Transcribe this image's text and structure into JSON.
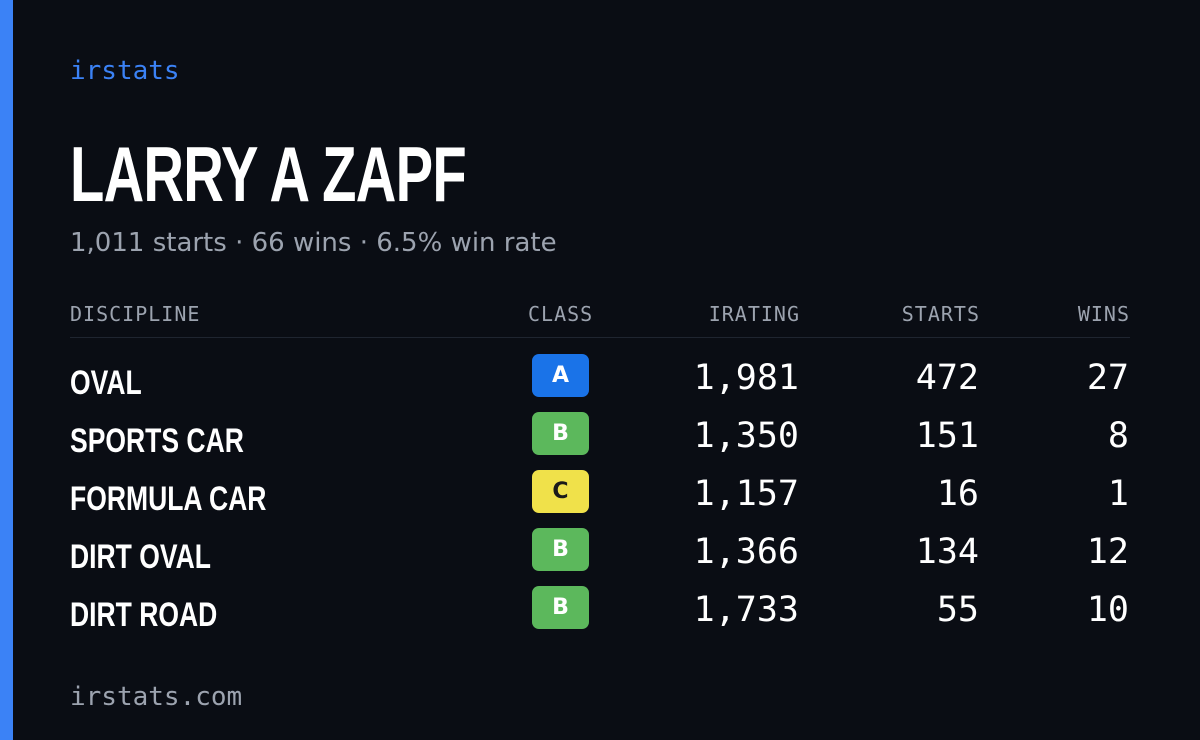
{
  "brand": "irstats",
  "driver": {
    "name": "LARRY A ZAPF",
    "summary": "1,011 starts · 66 wins · 6.5% win rate"
  },
  "table": {
    "headers": {
      "discipline": "DISCIPLINE",
      "class": "CLASS",
      "irating": "IRATING",
      "starts": "STARTS",
      "wins": "WINS"
    },
    "rows": [
      {
        "discipline": "OVAL",
        "class": "A",
        "irating": "1,981",
        "starts": "472",
        "wins": "27"
      },
      {
        "discipline": "SPORTS CAR",
        "class": "B",
        "irating": "1,350",
        "starts": "151",
        "wins": "8"
      },
      {
        "discipline": "FORMULA CAR",
        "class": "C",
        "irating": "1,157",
        "starts": "16",
        "wins": "1"
      },
      {
        "discipline": "DIRT OVAL",
        "class": "B",
        "irating": "1,366",
        "starts": "134",
        "wins": "12"
      },
      {
        "discipline": "DIRT ROAD",
        "class": "B",
        "irating": "1,733",
        "starts": "55",
        "wins": "10"
      }
    ]
  },
  "class_colors": {
    "A": "#1a73e8",
    "B": "#5cb85c",
    "C": "#f0e14a"
  },
  "accent_color": "#3b82f6",
  "footer": "irstats.com"
}
